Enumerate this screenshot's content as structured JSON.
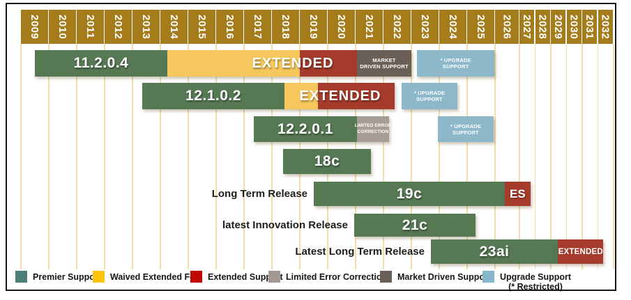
{
  "chart_data": {
    "type": "gantt",
    "x_axis": {
      "unit": "year",
      "ticks": [
        2009,
        2010,
        2011,
        2012,
        2013,
        2014,
        2015,
        2016,
        2017,
        2018,
        2019,
        2020,
        2021,
        2022,
        2023,
        2024,
        2025,
        2026,
        2027,
        2028,
        2029,
        2030,
        2031,
        2032
      ],
      "range": [
        2009,
        2033
      ]
    },
    "colors": {
      "header_gold": "#A47C1B",
      "gridline": "#F3DCA9",
      "premier": "#567853",
      "waived": "#F5C75D",
      "extended": "#A43B2B",
      "lec": "#A89D96",
      "mds": "#6A6057",
      "upgrade": "#8CB8C9"
    },
    "rows": [
      {
        "version": "11.2.0.4",
        "row_label": "",
        "segments": [
          {
            "kind": "premier",
            "label": "11.2.0.4",
            "size": "lg",
            "start": 2009.5,
            "end": 2014.25
          },
          {
            "kind": "waived",
            "label": "",
            "size": "",
            "start": 2014.25,
            "end": 2019.0
          },
          {
            "kind": "extended",
            "label": "",
            "size": "",
            "start": 2019.0,
            "end": 2021.05
          },
          {
            "kind": "mds",
            "lines": [
              "MARKET",
              "DRIVEN SUPPORT"
            ],
            "size": "xs",
            "start": 2021.05,
            "end": 2023.0
          },
          {
            "kind": "upgrade",
            "lines": [
              "* UPGRADE",
              "SUPPORT"
            ],
            "size": "xs",
            "start": 2023.2,
            "end": 2025.98
          }
        ],
        "overlays": [
          {
            "text": "EXTENDED",
            "center_year": 2018.75
          }
        ]
      },
      {
        "version": "12.1.0.2",
        "row_label": "",
        "segments": [
          {
            "kind": "premier",
            "label": "12.1.0.2",
            "size": "lg",
            "start": 2013.35,
            "end": 2018.45
          },
          {
            "kind": "waived",
            "label": "",
            "size": "",
            "start": 2018.45,
            "end": 2019.65
          },
          {
            "kind": "extended",
            "label": "",
            "size": "",
            "start": 2019.65,
            "end": 2022.4
          },
          {
            "kind": "upgrade",
            "lines": [
              "* UPGRADE",
              "SUPPORT"
            ],
            "size": "xs",
            "start": 2022.65,
            "end": 2024.65
          }
        ],
        "overlays": [
          {
            "text": "EXTENDED",
            "center_year": 2020.45
          }
        ]
      },
      {
        "version": "12.2.0.1",
        "row_label": "",
        "segments": [
          {
            "kind": "premier",
            "label": "12.2.0.1",
            "size": "lg",
            "start": 2017.35,
            "end": 2021.05
          },
          {
            "kind": "lec",
            "lines": [
              "LIMITED ERROR",
              "CORRECTION"
            ],
            "size": "xxs",
            "start": 2021.05,
            "end": 2022.2
          },
          {
            "kind": "upgrade",
            "lines": [
              "* UPGRADE",
              "SUPPORT"
            ],
            "size": "xs",
            "start": 2023.95,
            "end": 2025.95
          }
        ],
        "overlays": []
      },
      {
        "version": "18c",
        "row_label": "",
        "segments": [
          {
            "kind": "premier",
            "label": "18c",
            "size": "lg",
            "start": 2018.4,
            "end": 2021.55
          }
        ],
        "overlays": []
      },
      {
        "version": "19c",
        "row_label": "Long Term Release",
        "segments": [
          {
            "kind": "premier",
            "label": "19c",
            "size": "lg",
            "start": 2019.5,
            "end": 2026.4
          },
          {
            "kind": "extended",
            "label": "ES",
            "size": "md",
            "start": 2026.4,
            "end": 2027.7
          }
        ],
        "overlays": []
      },
      {
        "version": "21c",
        "row_label": "latest Innovation Release",
        "segments": [
          {
            "kind": "premier",
            "label": "21c",
            "size": "lg",
            "start": 2020.95,
            "end": 2025.3
          }
        ],
        "overlays": []
      },
      {
        "version": "23ai",
        "row_label": "Latest Long Term Release",
        "segments": [
          {
            "kind": "premier",
            "label": "23ai",
            "size": "lg",
            "start": 2023.7,
            "end": 2029.45
          },
          {
            "kind": "extended",
            "label": "EXTENDED",
            "size": "sm",
            "start": 2029.45,
            "end": 2032.35
          }
        ],
        "overlays": []
      }
    ],
    "legend": {
      "items": [
        {
          "label": "Premier Support",
          "label2": "",
          "color": "#4C8077"
        },
        {
          "label": "Waived Extended Fee",
          "label2": "",
          "color": "#FFC20D"
        },
        {
          "label": "Extended Support",
          "label2": "",
          "color": "#C00505"
        },
        {
          "label": "Limited Error Correction",
          "label2": "",
          "color": "#A39992"
        },
        {
          "label": "Market Driven Support",
          "label2": "",
          "color": "#6A6057"
        },
        {
          "label": "Upgrade Support",
          "label2": "(* Restricted)",
          "color": "#85B7CA"
        }
      ]
    }
  }
}
